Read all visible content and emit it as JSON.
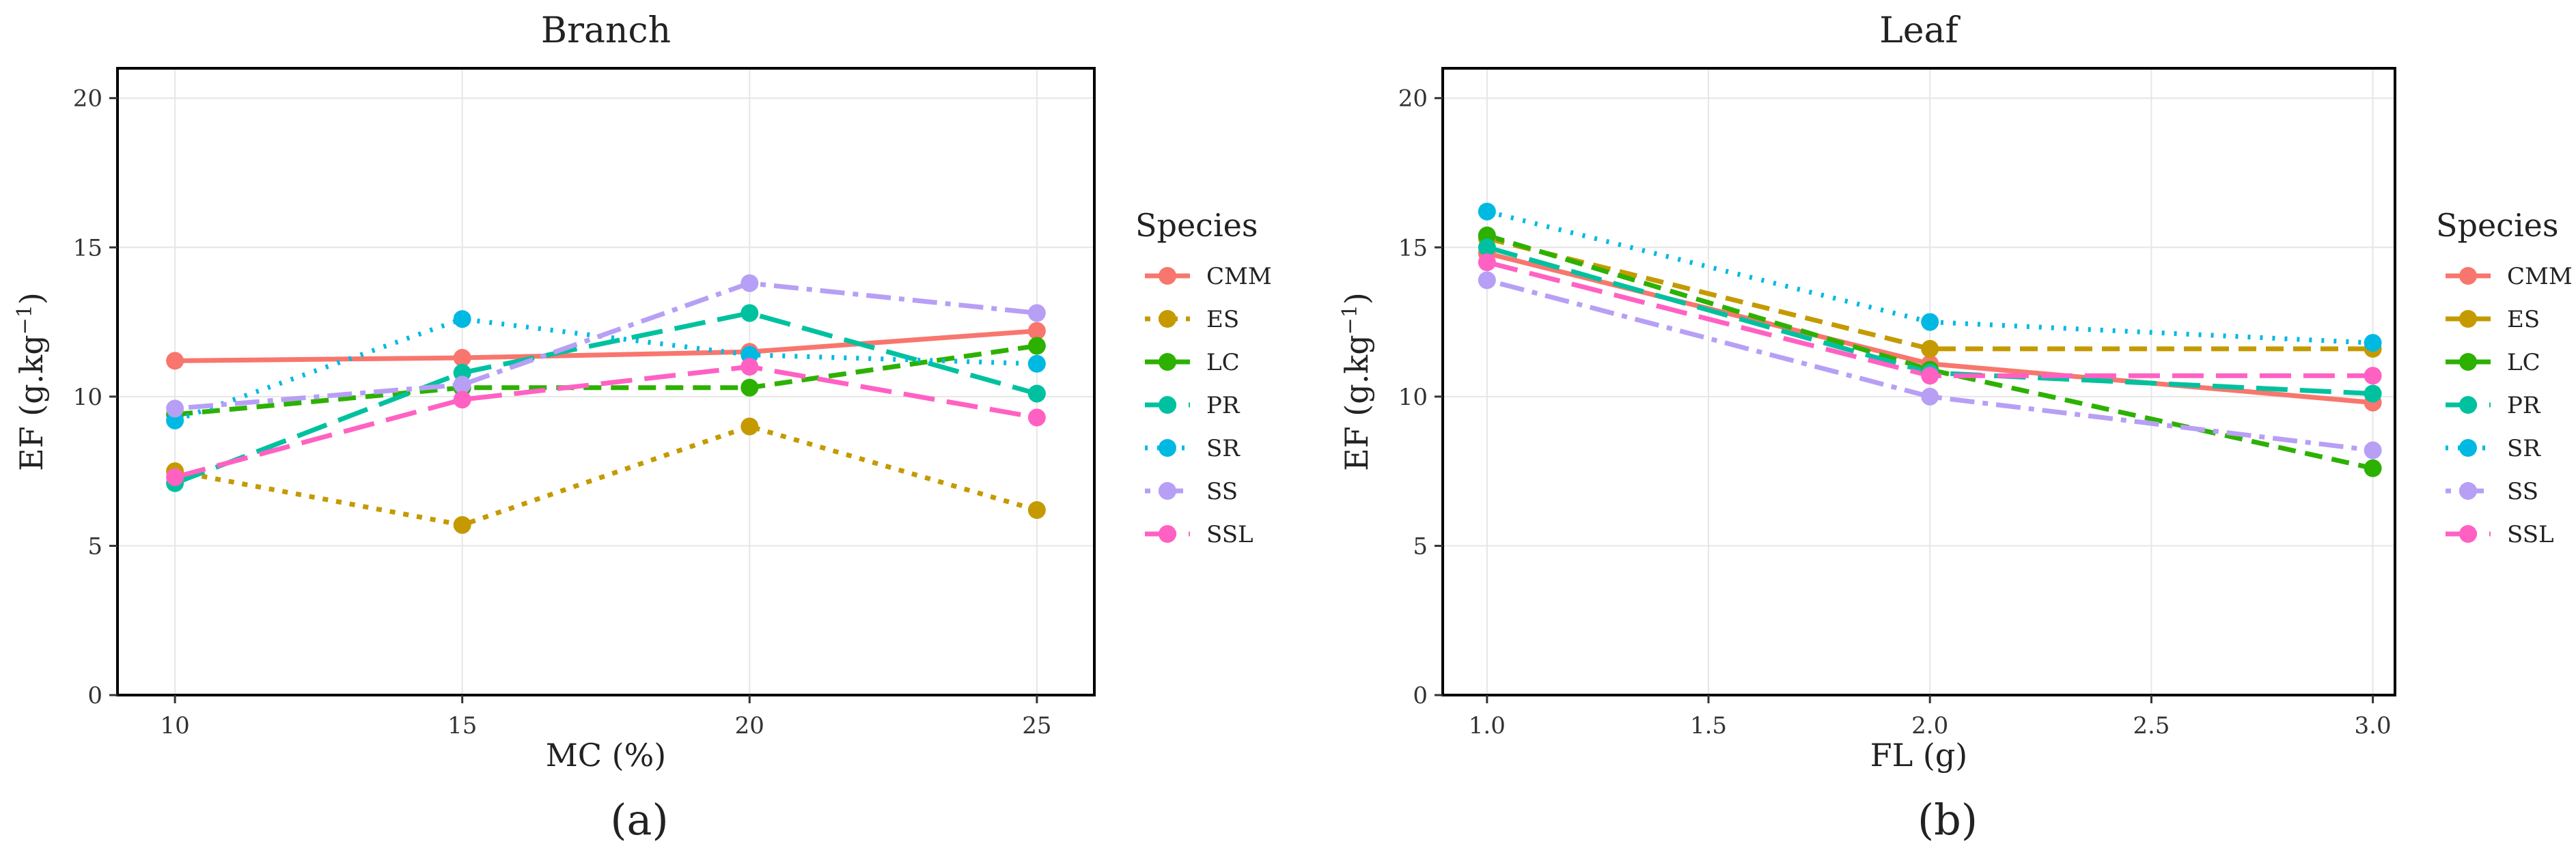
{
  "chart_data": [
    {
      "type": "line",
      "title": "Branch",
      "xlabel": "MC (%)",
      "ylabel": "EF (g.kg",
      "ylabel_sup": "−1",
      "ylabel_close": ")",
      "panel_label": "(a)",
      "x": [
        10,
        15,
        20,
        25
      ],
      "x_tick_labels": [
        "10",
        "15",
        "20",
        "25"
      ],
      "xlim": [
        9,
        26
      ],
      "ylim": [
        0,
        21
      ],
      "y_ticks": [
        0,
        5,
        10,
        15,
        20
      ],
      "y_tick_labels": [
        "0",
        "5",
        "10",
        "15",
        "20"
      ],
      "grid": true,
      "legend_title": "Species",
      "series": [
        {
          "name": "CMM",
          "color": "#F8766D",
          "dash": "solid",
          "values": [
            11.2,
            11.3,
            11.5,
            12.2
          ]
        },
        {
          "name": "ES",
          "color": "#C49A00",
          "dash": "dot",
          "values": [
            7.5,
            5.7,
            9.0,
            6.2
          ]
        },
        {
          "name": "LC",
          "color": "#2CB100",
          "dash": "dash",
          "values": [
            9.4,
            10.3,
            10.3,
            11.7
          ]
        },
        {
          "name": "PR",
          "color": "#00C19F",
          "dash": "longdash",
          "values": [
            7.1,
            10.8,
            12.8,
            10.1
          ]
        },
        {
          "name": "SR",
          "color": "#00B9E3",
          "dash": "dotted",
          "values": [
            9.2,
            12.6,
            11.4,
            11.1
          ]
        },
        {
          "name": "SS",
          "color": "#B79FF5",
          "dash": "dotdash",
          "values": [
            9.6,
            10.4,
            13.8,
            12.8
          ]
        },
        {
          "name": "SSL",
          "color": "#FF61C3",
          "dash": "longdash",
          "values": [
            7.3,
            9.9,
            11.0,
            9.3
          ]
        }
      ]
    },
    {
      "type": "line",
      "title": "Leaf",
      "xlabel": "FL (g)",
      "ylabel": "EF (g.kg",
      "ylabel_sup": "−1",
      "ylabel_close": ")",
      "panel_label": "(b)",
      "x": [
        1.0,
        2.0,
        3.0
      ],
      "x_ticks": [
        1.0,
        1.5,
        2.0,
        2.5,
        3.0
      ],
      "x_tick_labels": [
        "1.0",
        "1.5",
        "2.0",
        "2.5",
        "3.0"
      ],
      "xlim": [
        0.9,
        3.05
      ],
      "ylim": [
        0,
        21
      ],
      "y_ticks": [
        0,
        5,
        10,
        15,
        20
      ],
      "y_tick_labels": [
        "0",
        "5",
        "10",
        "15",
        "20"
      ],
      "grid": true,
      "legend_title": "Species",
      "series": [
        {
          "name": "CMM",
          "color": "#F8766D",
          "dash": "solid",
          "values": [
            14.8,
            11.1,
            9.8
          ]
        },
        {
          "name": "ES",
          "color": "#C49A00",
          "dash": "dash",
          "values": [
            15.3,
            11.6,
            11.6
          ]
        },
        {
          "name": "LC",
          "color": "#2CB100",
          "dash": "dash",
          "values": [
            15.4,
            10.9,
            7.6
          ]
        },
        {
          "name": "PR",
          "color": "#00C19F",
          "dash": "longdash",
          "values": [
            15.0,
            10.8,
            10.1
          ]
        },
        {
          "name": "SR",
          "color": "#00B9E3",
          "dash": "dotted",
          "values": [
            16.2,
            12.5,
            11.8
          ]
        },
        {
          "name": "SS",
          "color": "#B79FF5",
          "dash": "dotdash",
          "values": [
            13.9,
            10.0,
            8.2
          ]
        },
        {
          "name": "SSL",
          "color": "#FF61C3",
          "dash": "longdash",
          "values": [
            14.5,
            10.7,
            10.7
          ]
        }
      ]
    }
  ]
}
